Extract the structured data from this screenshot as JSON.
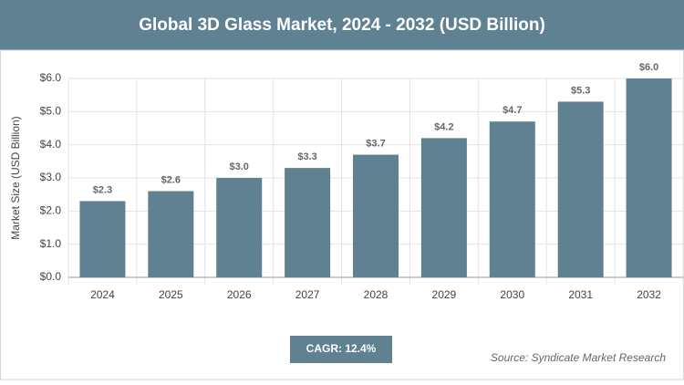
{
  "chart_data": {
    "type": "bar",
    "title": "Global 3D Glass Market, 2024 - 2032 (USD Billion)",
    "y_label": "Market Size (USD Billion)",
    "categories": [
      "2024",
      "2025",
      "2026",
      "2027",
      "2028",
      "2029",
      "2030",
      "2031",
      "2032"
    ],
    "values": [
      2.3,
      2.6,
      3.0,
      3.3,
      3.7,
      4.2,
      4.7,
      5.3,
      6.0
    ],
    "value_labels": [
      "$2.3",
      "$2.6",
      "$3.0",
      "$3.3",
      "$3.7",
      "$4.2",
      "$4.7",
      "$5.3",
      "$6.0"
    ],
    "color": "#5f8191",
    "ylim": [
      0,
      6
    ],
    "yticks": [
      {
        "value": 0,
        "label": "$0.0"
      },
      {
        "value": 1,
        "label": "$1.0"
      },
      {
        "value": 2,
        "label": "$2.0"
      },
      {
        "value": 3,
        "label": "$3.0"
      },
      {
        "value": 4,
        "label": "$4.0"
      },
      {
        "value": 5,
        "label": "$5.0"
      },
      {
        "value": 6,
        "label": "$6.0"
      }
    ],
    "grid": true,
    "annotation": "CAGR: 12.4%",
    "source": "Source: Syndicate Market Research"
  }
}
